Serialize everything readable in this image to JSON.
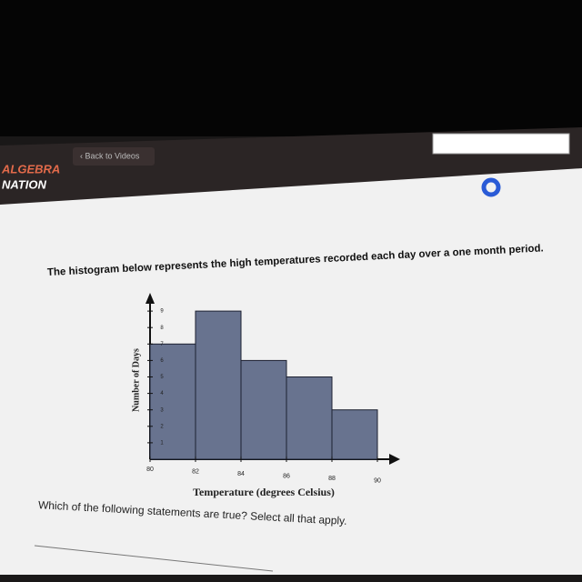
{
  "header": {
    "logo_top": "ALGEBRA",
    "logo_bottom": "NATION",
    "back_link": "‹ Back to Videos"
  },
  "prompt": "Which of the following statements are true? Select all that apply.",
  "chart_data": {
    "type": "histogram",
    "title": "The histogram below represents the high temperatures recorded each day over a one month period.",
    "x_label": "Temperature (degrees Celsius)",
    "y_label": "Number of Days",
    "bins": [
      80,
      82,
      84,
      86,
      88,
      90
    ],
    "values": [
      7,
      9,
      6,
      5,
      3
    ],
    "color": "#68738f",
    "xlim": [
      80,
      90
    ],
    "xticks": [
      80,
      82,
      84,
      86,
      88,
      90
    ],
    "ylim": [
      0,
      10
    ],
    "yticks": [
      1,
      2,
      3,
      4,
      5,
      6,
      7,
      8,
      9
    ]
  }
}
